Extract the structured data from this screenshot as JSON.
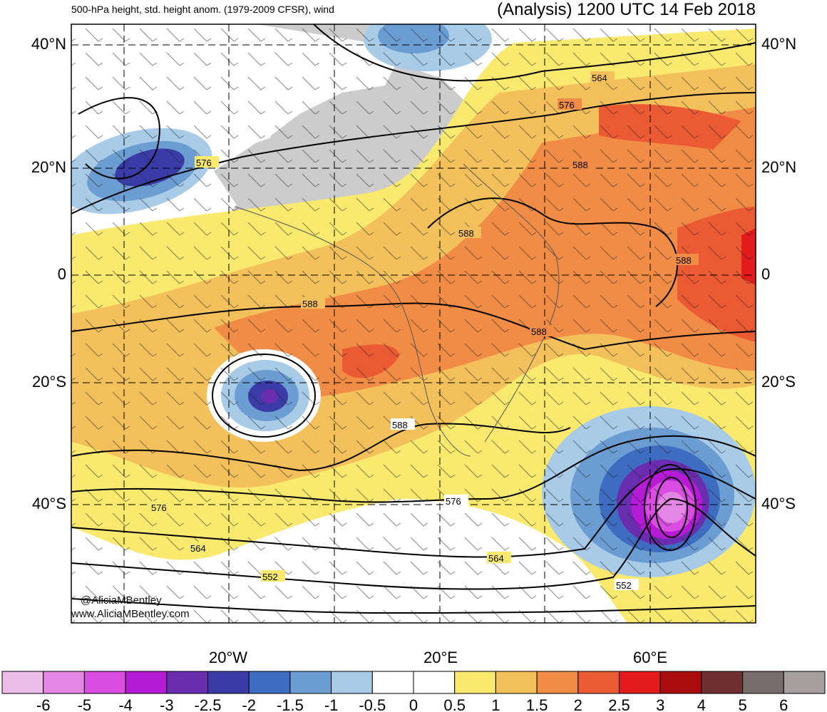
{
  "header": {
    "left_title": "500-hPa height, std. height anom. (1979-2009 CFSR), wind",
    "right_title": "(Analysis) 1200 UTC 14 Feb 2018"
  },
  "latitude_labels": [
    "40°N",
    "20°N",
    "0",
    "20°S",
    "40°S"
  ],
  "longitude_labels": [
    "20°W",
    "20°E",
    "60°E"
  ],
  "contour_labels": [
    "564",
    "576",
    "576",
    "588",
    "588",
    "588",
    "588",
    "588",
    "588",
    "576",
    "576",
    "564",
    "564",
    "552",
    "552"
  ],
  "credits": [
    "@AliciaMBentley",
    "www.AliciaMBentley.com"
  ],
  "colorbar": {
    "labels": [
      "-6",
      "-5",
      "-4",
      "-3",
      "-2.5",
      "-2",
      "-1.5",
      "-1",
      "-0.5",
      "0",
      "0.5",
      "1",
      "1.5",
      "2",
      "2.5",
      "3",
      "4",
      "5",
      "6"
    ],
    "colors": [
      "#ecbde9",
      "#e486e3",
      "#d94ee0",
      "#b51ad5",
      "#6a2db0",
      "#3b3ba8",
      "#3d6cc0",
      "#6b9cd2",
      "#a8cbe8",
      "#ffffff",
      "#ffffff",
      "#f9e96f",
      "#f4c05c",
      "#f08c45",
      "#eb5a33",
      "#e31b1b",
      "#a80c0c",
      "#6e3030",
      "#766c6c",
      "#a69f9f"
    ]
  },
  "colors": {
    "land": "#cccccc",
    "contour": "#000000",
    "background": "#ffffff"
  }
}
